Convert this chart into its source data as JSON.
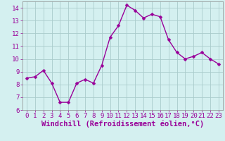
{
  "x": [
    0,
    1,
    2,
    3,
    4,
    5,
    6,
    7,
    8,
    9,
    10,
    11,
    12,
    13,
    14,
    15,
    16,
    17,
    18,
    19,
    20,
    21,
    22,
    23
  ],
  "y": [
    8.5,
    8.6,
    9.1,
    8.1,
    6.6,
    6.6,
    8.1,
    8.4,
    8.1,
    9.5,
    11.7,
    12.6,
    14.2,
    13.8,
    13.2,
    13.5,
    13.3,
    11.5,
    10.5,
    10.0,
    10.2,
    10.5,
    10.0,
    9.6
  ],
  "line_color": "#990099",
  "marker": "D",
  "marker_size": 2.5,
  "line_width": 1.0,
  "bg_color": "#d4f0f0",
  "grid_color": "#aacccc",
  "xlabel": "Windchill (Refroidissement éolien,°C)",
  "xlabel_color": "#990099",
  "xlabel_fontsize": 7.5,
  "tick_color": "#990099",
  "ylim": [
    6,
    14.5
  ],
  "xlim": [
    -0.5,
    23.5
  ],
  "yticks": [
    6,
    7,
    8,
    9,
    10,
    11,
    12,
    13,
    14
  ],
  "xticks": [
    0,
    1,
    2,
    3,
    4,
    5,
    6,
    7,
    8,
    9,
    10,
    11,
    12,
    13,
    14,
    15,
    16,
    17,
    18,
    19,
    20,
    21,
    22,
    23
  ],
  "tick_fontsize": 6.5,
  "title": ""
}
